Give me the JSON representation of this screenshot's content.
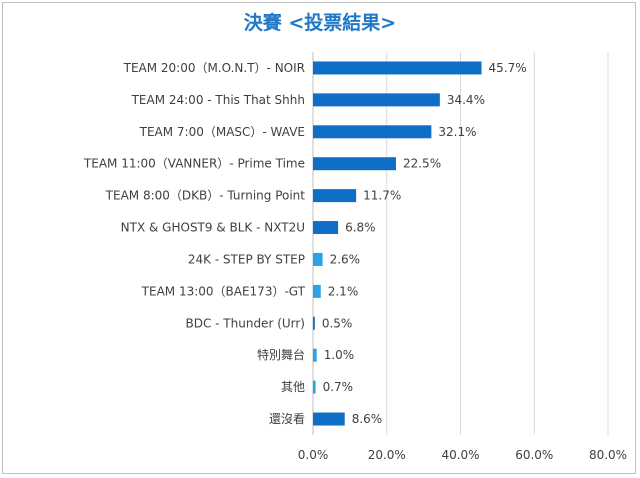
{
  "chart_data": {
    "type": "bar",
    "orientation": "horizontal",
    "title": "決賽 <投票結果>",
    "xlabel": "",
    "ylabel": "",
    "xlim": [
      0,
      80
    ],
    "ticks": [
      "0.0%",
      "20.0%",
      "40.0%",
      "60.0%",
      "80.0%"
    ],
    "grid": true,
    "categories": [
      "TEAM 20:00（M.O.N.T）- NOIR",
      "TEAM 24:00 - This That Shhh",
      "TEAM 7:00（MASC）- WAVE",
      "TEAM 11:00（VANNER）- Prime Time",
      "TEAM 8:00（DKB）- Turning Point",
      "NTX & GHOST9 & BLK - NXT2U",
      "24K - STEP BY STEP",
      "TEAM 13:00（BAE173）-GT",
      "BDC - Thunder (Urr)",
      "特別舞台",
      "其他",
      "還沒看"
    ],
    "values": [
      45.7,
      34.4,
      32.1,
      22.5,
      11.7,
      6.8,
      2.6,
      2.1,
      0.5,
      1.0,
      0.7,
      8.6
    ],
    "value_labels": [
      "45.7%",
      "34.4%",
      "32.1%",
      "22.5%",
      "11.7%",
      "6.8%",
      "2.6%",
      "2.1%",
      "0.5%",
      "1.0%",
      "0.7%",
      "8.6%"
    ],
    "colors": [
      "#0f6fc6",
      "#0f6fc6",
      "#0f6fc6",
      "#0f6fc6",
      "#0f6fc6",
      "#0f6fc6",
      "#29a3e6",
      "#29a3e6",
      "#0f6fc6",
      "#29a3e6",
      "#29a3e6",
      "#0f6fc6"
    ]
  }
}
